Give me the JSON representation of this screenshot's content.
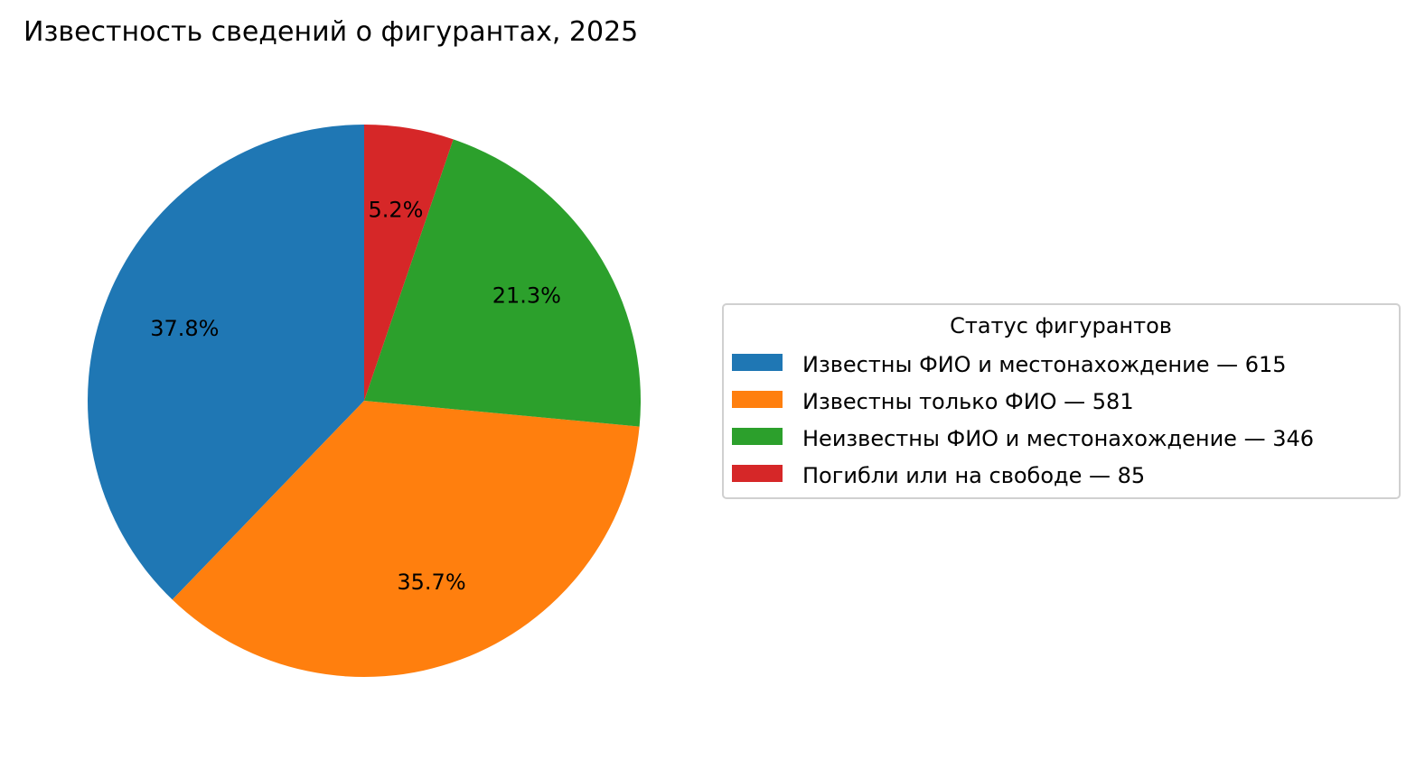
{
  "chart_data": {
    "type": "pie",
    "title": "Известность сведений о фигурантах, 2025",
    "start_angle": 90,
    "direction": "counterclockwise",
    "slices": [
      {
        "label": "Известны ФИО и местонахождение — 615",
        "value": 615,
        "pct_label": "37.8%",
        "color": "#1f77b4"
      },
      {
        "label": "Известны только ФИО — 581",
        "value": 581,
        "pct_label": "35.7%",
        "color": "#ff7f0e"
      },
      {
        "label": "Неизвестны ФИО и местонахождение — 346",
        "value": 346,
        "pct_label": "21.3%",
        "color": "#2ca02c"
      },
      {
        "label": "Погибли или на свободе — 85",
        "value": 85,
        "pct_label": "5.2%",
        "color": "#d62728"
      }
    ],
    "legend": {
      "title": "Статус фигурантов",
      "placement": "center-right"
    }
  }
}
